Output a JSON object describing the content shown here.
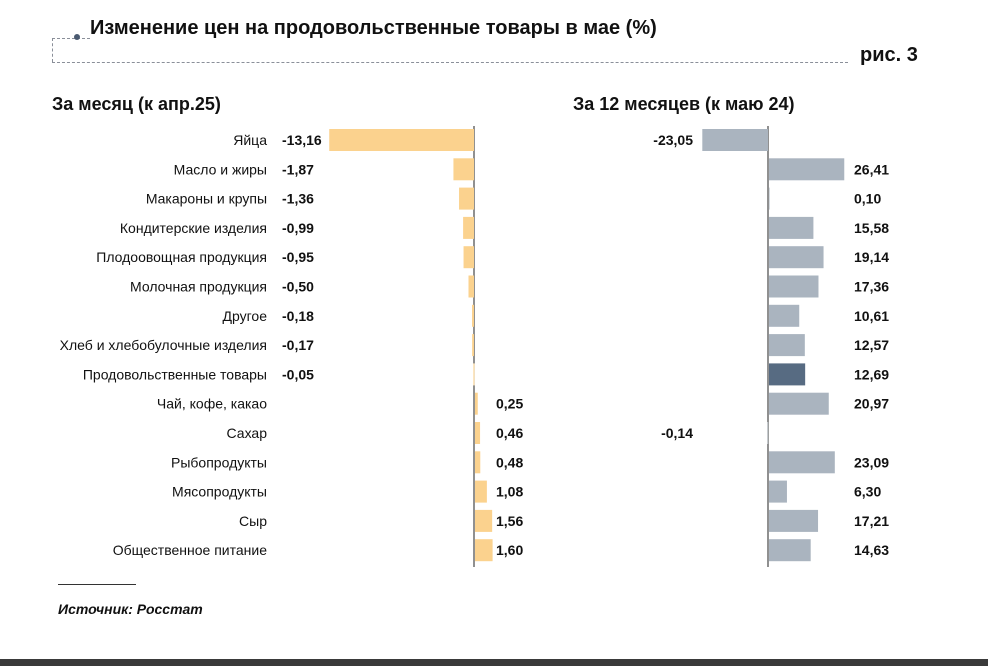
{
  "header": {
    "title": "Изменение цен на продовольственные товары в мае (%)",
    "figure_label": "рис. 3"
  },
  "source": "Источник: Росстат",
  "colors": {
    "monthly_bar": "#fbd28e",
    "annual_bar": "#aab4bf",
    "annual_highlight": "#576b82",
    "axis": "#222222"
  },
  "chart_data": [
    {
      "type": "bar",
      "orientation": "horizontal",
      "title": "За месяц (к апр.25)",
      "categories": [
        "Яйца",
        "Масло и жиры",
        "Макароны и крупы",
        "Кондитерские изделия",
        "Плодоовощная продукция",
        "Молочная продукция",
        "Другое",
        "Хлеб и хлебобулочные изделия",
        "Продовольственные товары",
        "Чай, кофе, какао",
        "Сахар",
        "Рыбопродукты",
        "Мясопродукты",
        "Сыр",
        "Общественное питание"
      ],
      "values": [
        -13.16,
        -1.87,
        -1.36,
        -0.99,
        -0.95,
        -0.5,
        -0.18,
        -0.17,
        -0.05,
        0.25,
        0.46,
        0.48,
        1.08,
        1.56,
        1.6
      ],
      "labels": [
        "-13,16",
        "-1,87",
        "-1,36",
        "-0,99",
        "-0,95",
        "-0,50",
        "-0,18",
        "-0,17",
        "-0,05",
        "0,25",
        "0,46",
        "0,48",
        "1,08",
        "1,56",
        "1,60"
      ]
    },
    {
      "type": "bar",
      "orientation": "horizontal",
      "title": "За 12 месяцев (к маю 24)",
      "categories": [
        "Яйца",
        "Масло и жиры",
        "Макароны и крупы",
        "Кондитерские изделия",
        "Плодоовощная продукция",
        "Молочная продукция",
        "Другое",
        "Хлеб и хлебобулочные изделия",
        "Продовольственные товары",
        "Чай, кофе, какао",
        "Сахар",
        "Рыбопродукты",
        "Мясопродукты",
        "Сыр",
        "Общественное питание"
      ],
      "values": [
        -23.05,
        26.41,
        0.1,
        15.58,
        19.14,
        17.36,
        10.61,
        12.57,
        12.69,
        20.97,
        -0.14,
        23.09,
        6.3,
        17.21,
        14.63
      ],
      "labels": [
        "-23,05",
        "26,41",
        "0,10",
        "15,58",
        "19,14",
        "17,36",
        "10,61",
        "12,57",
        "12,69",
        "20,97",
        "-0,14",
        "23,09",
        "6,30",
        "17,21",
        "14,63"
      ],
      "highlight_category": "Продовольственные товары"
    }
  ]
}
